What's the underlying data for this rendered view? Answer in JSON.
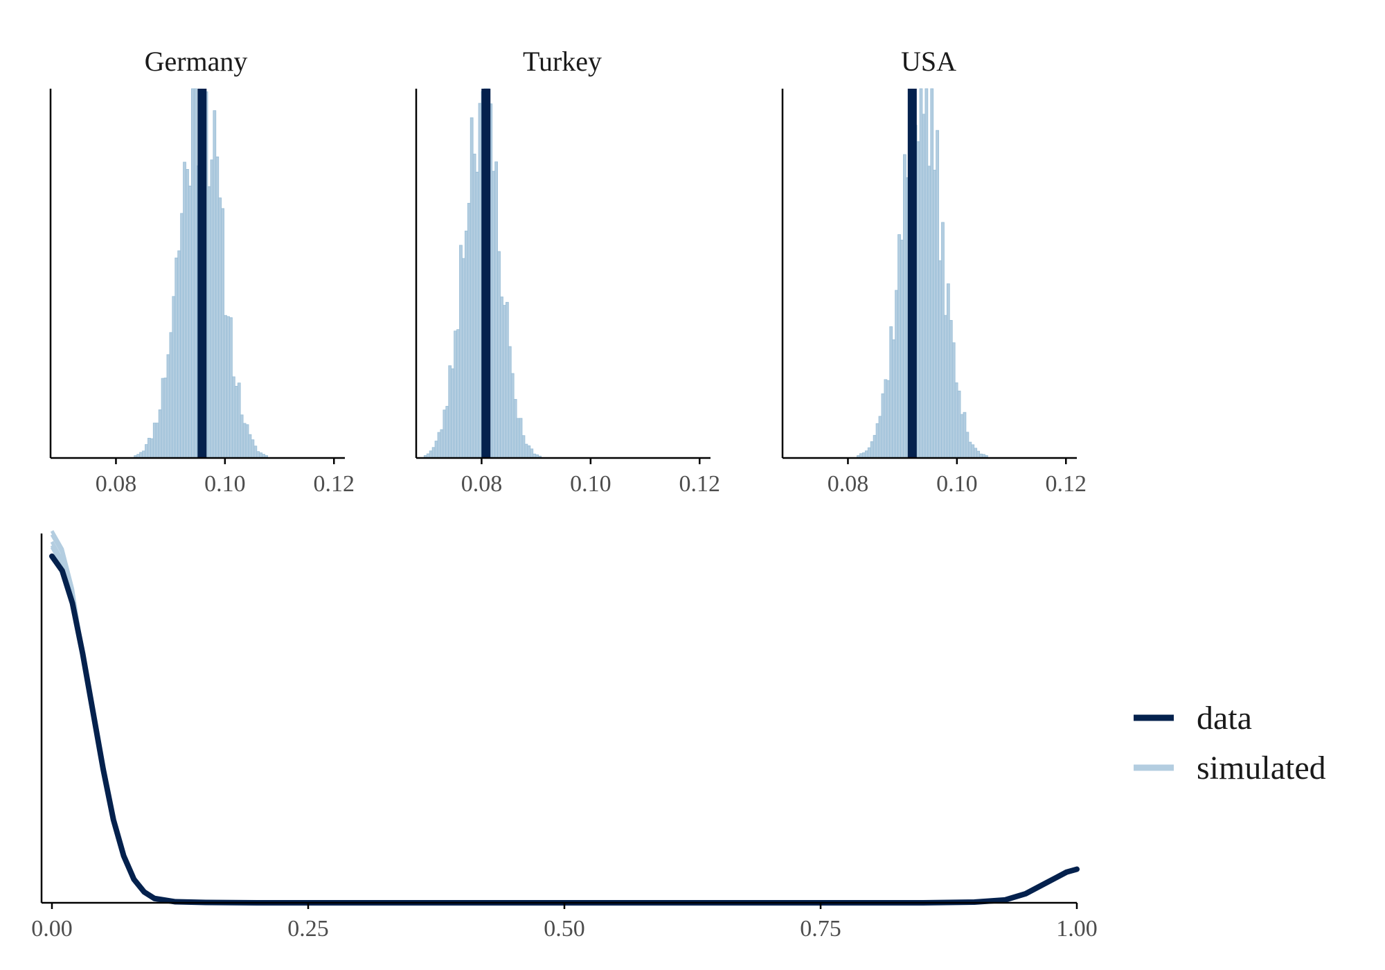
{
  "colors": {
    "data": "#04214d",
    "simulated": "#b3cde0",
    "simulated_edge": "#98bdd6",
    "axis": "#000000"
  },
  "chart_data": [
    {
      "type": "histogram",
      "title": "Germany",
      "xlim": [
        0.068,
        0.122
      ],
      "xticks": [
        0.08,
        0.1,
        0.12
      ],
      "xtick_labels": [
        "0.08",
        "0.10",
        "0.12"
      ],
      "observed": 0.0958,
      "simulated_center": 0.0955,
      "simulated_sd": 0.0038
    },
    {
      "type": "histogram",
      "title": "Turkey",
      "xlim": [
        0.068,
        0.122
      ],
      "xticks": [
        0.08,
        0.1,
        0.12
      ],
      "xtick_labels": [
        "0.08",
        "0.10",
        "0.12"
      ],
      "observed": 0.0808,
      "simulated_center": 0.08,
      "simulated_sd": 0.0033
    },
    {
      "type": "histogram",
      "title": "USA",
      "xlim": [
        0.068,
        0.122
      ],
      "xticks": [
        0.08,
        0.1,
        0.12
      ],
      "xtick_labels": [
        "0.08",
        "0.10",
        "0.12"
      ],
      "observed": 0.0918,
      "simulated_center": 0.0935,
      "simulated_sd": 0.0037
    },
    {
      "type": "line",
      "xlim": [
        0,
        1
      ],
      "xticks": [
        0,
        0.25,
        0.5,
        0.75,
        1
      ],
      "xtick_labels": [
        "0.00",
        "0.25",
        "0.50",
        "0.75",
        "1.00"
      ],
      "series": [
        {
          "name": "data",
          "x": [
            0,
            0.01,
            0.02,
            0.03,
            0.04,
            0.05,
            0.06,
            0.07,
            0.08,
            0.09,
            0.1,
            0.12,
            0.15,
            0.2,
            0.3,
            0.5,
            0.7,
            0.85,
            0.9,
            0.93,
            0.95,
            0.97,
            0.99,
            1
          ],
          "y": [
            0.96,
            0.92,
            0.83,
            0.69,
            0.53,
            0.37,
            0.23,
            0.13,
            0.065,
            0.03,
            0.012,
            0.003,
            0.001,
            0,
            0,
            0,
            0,
            0,
            0.002,
            0.008,
            0.025,
            0.055,
            0.085,
            0.093
          ]
        },
        {
          "name": "simulated",
          "x": [
            0,
            0.01,
            0.02,
            0.03,
            0.04,
            0.05,
            0.06,
            0.07,
            0.08,
            0.09,
            0.1,
            0.12,
            0.15,
            0.2,
            0.3,
            0.5,
            0.7,
            0.85,
            0.9,
            0.93,
            0.95,
            0.97,
            0.99,
            1
          ],
          "y": [
            1.0,
            0.95,
            0.84,
            0.69,
            0.53,
            0.37,
            0.23,
            0.13,
            0.065,
            0.03,
            0.012,
            0.003,
            0.001,
            0,
            0,
            0,
            0,
            0,
            0.002,
            0.008,
            0.025,
            0.055,
            0.085,
            0.093
          ]
        }
      ],
      "legend": {
        "position": "right",
        "entries": [
          "data",
          "simulated"
        ]
      }
    }
  ]
}
